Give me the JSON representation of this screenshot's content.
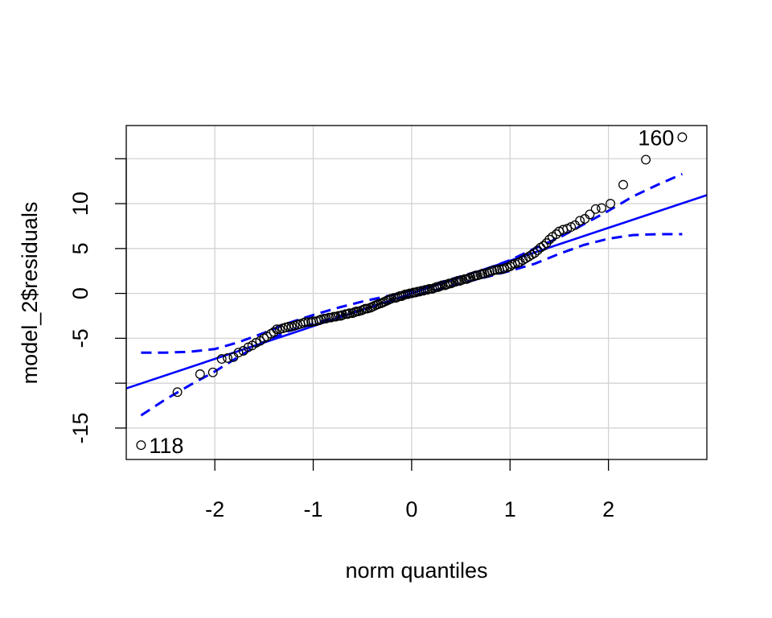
{
  "chart_data": {
    "type": "scatter",
    "title": "",
    "xlabel": "norm quantiles",
    "ylabel": "model_2$residuals",
    "xlim": [
      -2.9,
      3.0
    ],
    "ylim": [
      -18.5,
      18.7
    ],
    "grid": true,
    "x_ticks": [
      -2,
      -1,
      0,
      1,
      2
    ],
    "x_tick_labels": [
      "-2",
      "-1",
      "0",
      "1",
      "2"
    ],
    "y_ticks": [
      -15,
      -10,
      -5,
      0,
      5,
      10,
      15
    ],
    "y_tick_labels": [
      "-15",
      "",
      "-5",
      "0",
      "5",
      "10",
      ""
    ],
    "grid_y": [
      -15,
      -10,
      -5,
      0,
      5,
      10,
      15
    ],
    "reference_line": {
      "intercept": 0.0,
      "slope": 3.65
    },
    "envelope": {
      "x": [
        -2.75,
        -2.5,
        -2.25,
        -2.0,
        -1.75,
        -1.5,
        -1.25,
        -1.0,
        -0.75,
        -0.5,
        -0.25,
        0.0,
        0.25,
        0.5,
        0.75,
        1.0,
        1.25,
        1.5,
        1.75,
        2.0,
        2.25,
        2.5,
        2.75
      ],
      "upper": [
        -6.6,
        -6.6,
        -6.5,
        -6.2,
        -5.4,
        -4.4,
        -3.3,
        -2.4,
        -1.6,
        -0.9,
        -0.3,
        0.3,
        1.1,
        1.9,
        2.7,
        3.7,
        5.0,
        6.2,
        7.7,
        9.2,
        10.8,
        12.1,
        13.3
      ],
      "lower": [
        -13.6,
        -11.8,
        -10.2,
        -8.7,
        -7.0,
        -5.4,
        -4.2,
        -3.4,
        -2.6,
        -1.8,
        -1.0,
        -0.3,
        0.4,
        1.1,
        1.8,
        2.5,
        3.3,
        4.4,
        5.4,
        6.1,
        6.5,
        6.6,
        6.6
      ]
    },
    "series": [
      {
        "x": [
          -2.75,
          -2.38,
          -2.15,
          -2.02,
          -1.93,
          -1.87,
          -1.81,
          -1.76,
          -1.71,
          -1.66,
          -1.62,
          -1.58,
          -1.54,
          -1.5,
          -1.47,
          -1.43,
          -1.4,
          -1.37,
          -1.34,
          -1.31,
          -1.28,
          -1.25,
          -1.22,
          -1.19,
          -1.16,
          -1.13,
          -1.1,
          -1.08,
          -1.05,
          -1.02,
          -1.0,
          -0.97,
          -0.94,
          -0.92,
          -0.89,
          -0.87,
          -0.84,
          -0.82,
          -0.79,
          -0.77,
          -0.74,
          -0.72,
          -0.7,
          -0.67,
          -0.65,
          -0.63,
          -0.6,
          -0.58,
          -0.56,
          -0.54,
          -0.51,
          -0.49,
          -0.47,
          -0.45,
          -0.42,
          -0.4,
          -0.38,
          -0.36,
          -0.34,
          -0.31,
          -0.29,
          -0.27,
          -0.25,
          -0.23,
          -0.21,
          -0.18,
          -0.16,
          -0.14,
          -0.12,
          -0.1,
          -0.08,
          -0.06,
          -0.04,
          -0.02,
          0.0,
          0.02,
          0.04,
          0.06,
          0.08,
          0.1,
          0.12,
          0.14,
          0.16,
          0.18,
          0.21,
          0.23,
          0.25,
          0.27,
          0.29,
          0.31,
          0.34,
          0.36,
          0.38,
          0.4,
          0.42,
          0.45,
          0.47,
          0.49,
          0.51,
          0.54,
          0.56,
          0.58,
          0.6,
          0.63,
          0.65,
          0.67,
          0.7,
          0.72,
          0.74,
          0.77,
          0.79,
          0.82,
          0.84,
          0.87,
          0.89,
          0.92,
          0.94,
          0.97,
          1.0,
          1.02,
          1.05,
          1.08,
          1.1,
          1.13,
          1.16,
          1.19,
          1.22,
          1.25,
          1.28,
          1.31,
          1.34,
          1.37,
          1.4,
          1.43,
          1.47,
          1.5,
          1.54,
          1.58,
          1.62,
          1.66,
          1.71,
          1.76,
          1.81,
          1.87,
          1.93,
          2.02,
          2.15,
          2.38,
          2.75
        ],
        "y": [
          -16.9,
          -11.0,
          -9.0,
          -8.8,
          -7.3,
          -7.2,
          -7.1,
          -6.6,
          -6.4,
          -6.0,
          -5.8,
          -5.5,
          -5.3,
          -5.0,
          -4.8,
          -4.5,
          -4.3,
          -4.0,
          -4.0,
          -3.9,
          -3.8,
          -3.7,
          -3.7,
          -3.6,
          -3.5,
          -3.4,
          -3.3,
          -3.2,
          -3.2,
          -3.2,
          -3.1,
          -3.1,
          -3.0,
          -2.9,
          -2.8,
          -2.8,
          -2.7,
          -2.7,
          -2.6,
          -2.6,
          -2.5,
          -2.5,
          -2.4,
          -2.3,
          -2.3,
          -2.2,
          -2.2,
          -2.1,
          -2.0,
          -2.0,
          -1.9,
          -1.8,
          -1.7,
          -1.7,
          -1.6,
          -1.5,
          -1.4,
          -1.3,
          -1.2,
          -1.1,
          -1.0,
          -0.9,
          -0.8,
          -0.7,
          -0.6,
          -0.5,
          -0.5,
          -0.4,
          -0.3,
          -0.3,
          -0.2,
          -0.1,
          -0.1,
          0.0,
          0.0,
          0.1,
          0.1,
          0.2,
          0.2,
          0.3,
          0.3,
          0.4,
          0.4,
          0.5,
          0.5,
          0.6,
          0.7,
          0.7,
          0.8,
          0.9,
          0.9,
          1.0,
          1.1,
          1.1,
          1.2,
          1.3,
          1.4,
          1.4,
          1.5,
          1.6,
          1.6,
          1.7,
          1.8,
          1.9,
          2.0,
          2.0,
          2.1,
          2.2,
          2.2,
          2.3,
          2.4,
          2.5,
          2.6,
          2.6,
          2.7,
          2.7,
          2.8,
          2.9,
          3.0,
          3.2,
          3.3,
          3.4,
          3.5,
          3.7,
          3.9,
          4.1,
          4.3,
          4.5,
          4.8,
          5.1,
          5.3,
          5.6,
          6.0,
          6.3,
          6.6,
          6.9,
          7.1,
          7.2,
          7.4,
          7.6,
          8.1,
          8.3,
          8.8,
          9.4,
          9.5,
          10.0,
          12.1,
          14.9,
          17.4
        ]
      }
    ],
    "annotations": [
      {
        "text": "160",
        "x": 2.75,
        "y": 17.4,
        "side": "left"
      },
      {
        "text": "118",
        "x": -2.75,
        "y": -16.9,
        "side": "right"
      }
    ],
    "colors": {
      "reference": "#0000ff",
      "envelope": "#0000ff",
      "points": "#000000",
      "grid": "#d3d3d3",
      "axes": "#000000"
    }
  }
}
